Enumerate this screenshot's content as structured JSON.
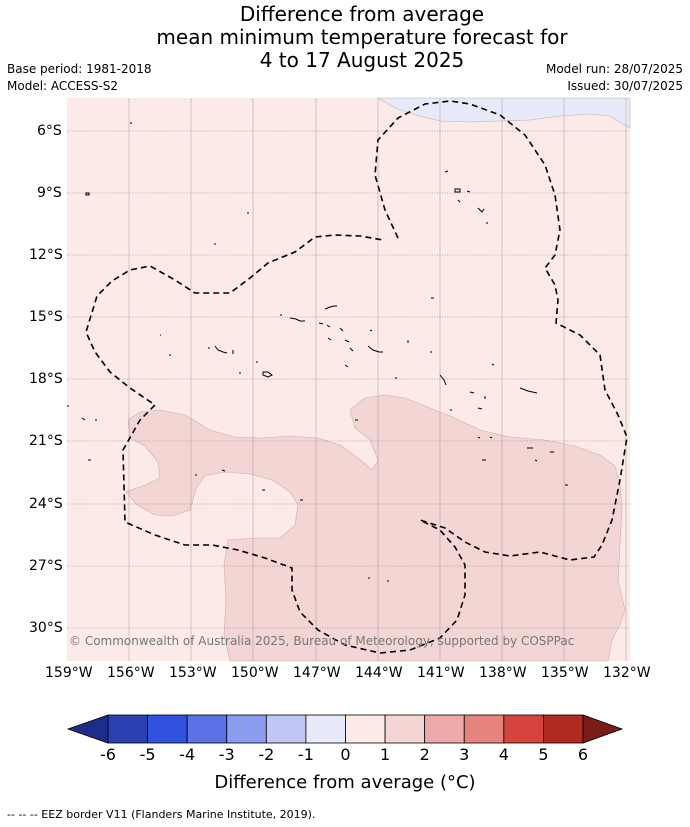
{
  "header": {
    "title_lines": [
      "Difference from average",
      "mean minimum temperature forecast for",
      "4 to 17 August 2025"
    ],
    "base_period": "Base period: 1981-2018",
    "model": "Model: ACCESS-S2",
    "model_run": "Model run: 28/07/2025",
    "issued": "Issued: 30/07/2025"
  },
  "map": {
    "lon_labels": [
      "159°W",
      "156°W",
      "153°W",
      "150°W",
      "147°W",
      "144°W",
      "141°W",
      "138°W",
      "135°W",
      "132°W"
    ],
    "lat_labels": [
      "6°S",
      "9°S",
      "12°S",
      "15°S",
      "18°S",
      "21°S",
      "24°S",
      "27°S",
      "30°S"
    ],
    "copyright": "© Commonwealth of Australia 2025, Bureau of Meteorology, supported by COSPPac",
    "fill_colors": {
      "anomaly_0_to_1": "#fbeae8",
      "anomaly_1_to_2": "#f3d5d3",
      "anomaly_minus1_to_0": "#e8eafa"
    }
  },
  "colorbar": {
    "title": "Difference from average (°C)",
    "tick_labels": [
      "-6",
      "-5",
      "-4",
      "-3",
      "-2",
      "-1",
      "0",
      "1",
      "2",
      "3",
      "4",
      "5",
      "6"
    ],
    "colors": [
      "#1e2d8a",
      "#2a3fb0",
      "#3050e0",
      "#5a72e6",
      "#8a9cee",
      "#c0c7f5",
      "#e8eafa",
      "#fbeae8",
      "#f3d5d3",
      "#eda9a7",
      "#e7837d",
      "#d6453d",
      "#b02a22",
      "#7a1b18"
    ]
  },
  "footer": {
    "legend_text": "--  --  -- EEZ border V11 (Flanders Marine Institute, 2019)."
  }
}
